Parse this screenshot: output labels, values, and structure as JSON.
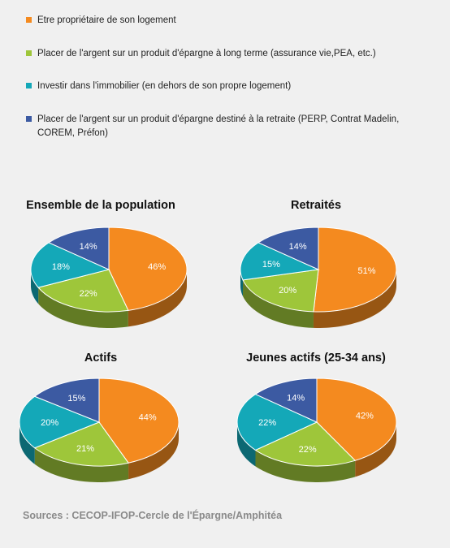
{
  "legend": [
    {
      "label": "Etre propriétaire de son logement",
      "color": "#f48a1f"
    },
    {
      "label": "Placer de l'argent sur un produit d'épargne à long terme (assurance vie,PEA, etc.)",
      "color": "#9ec63a"
    },
    {
      "label": "Investir dans l'immobilier (en dehors de son propre logement)",
      "color": "#14a8b8"
    },
    {
      "label": "Placer de l'argent sur un produit d'épargne destiné à la retraite (PERP, Contrat Madelin, COREM, Préfon)",
      "color": "#3c5aa2"
    }
  ],
  "chart_data": [
    {
      "type": "pie",
      "title": "Ensemble de la population",
      "categories": [
        "Etre propriétaire de son logement",
        "Placer de l'argent sur un produit d'épargne à long terme (assurance vie,PEA, etc.)",
        "Investir dans l'immobilier (en dehors de son propre logement)",
        "Placer de l'argent sur un produit d'épargne destiné à la retraite (PERP, Contrat Madelin, COREM, Préfon)"
      ],
      "values": [
        46,
        22,
        18,
        14
      ],
      "labels": [
        "46%",
        "22%",
        "18%",
        "14%"
      ]
    },
    {
      "type": "pie",
      "title": "Retraités",
      "categories": [
        "Etre propriétaire de son logement",
        "Placer de l'argent sur un produit d'épargne à long terme (assurance vie,PEA, etc.)",
        "Investir dans l'immobilier (en dehors de son propre logement)",
        "Placer de l'argent sur un produit d'épargne destiné à la retraite (PERP, Contrat Madelin, COREM, Préfon)"
      ],
      "values": [
        51,
        20,
        15,
        14
      ],
      "labels": [
        "51%",
        "20%",
        "15%",
        "14%"
      ]
    },
    {
      "type": "pie",
      "title": "Actifs",
      "categories": [
        "Etre propriétaire de son logement",
        "Placer de l'argent sur un produit d'épargne à long terme (assurance vie,PEA, etc.)",
        "Investir dans l'immobilier (en dehors de son propre logement)",
        "Placer de l'argent sur un produit d'épargne destiné à la retraite (PERP, Contrat Madelin, COREM, Préfon)"
      ],
      "values": [
        44,
        21,
        20,
        15
      ],
      "labels": [
        "44%",
        "21%",
        "20%",
        "15%"
      ]
    },
    {
      "type": "pie",
      "title": "Jeunes actifs (25-34 ans)",
      "categories": [
        "Etre propriétaire de son logement",
        "Placer de l'argent sur un produit d'épargne à long terme (assurance vie,PEA, etc.)",
        "Investir dans l'immobilier (en dehors de son propre logement)",
        "Placer de l'argent sur un produit d'épargne destiné à la retraite (PERP, Contrat Madelin, COREM, Préfon)"
      ],
      "values": [
        42,
        22,
        22,
        14
      ],
      "labels": [
        "42%",
        "22%",
        "22%",
        "14%"
      ]
    }
  ],
  "source": "Sources : CECOP-IFOP-Cercle  de l'Épargne/Amphitéa"
}
